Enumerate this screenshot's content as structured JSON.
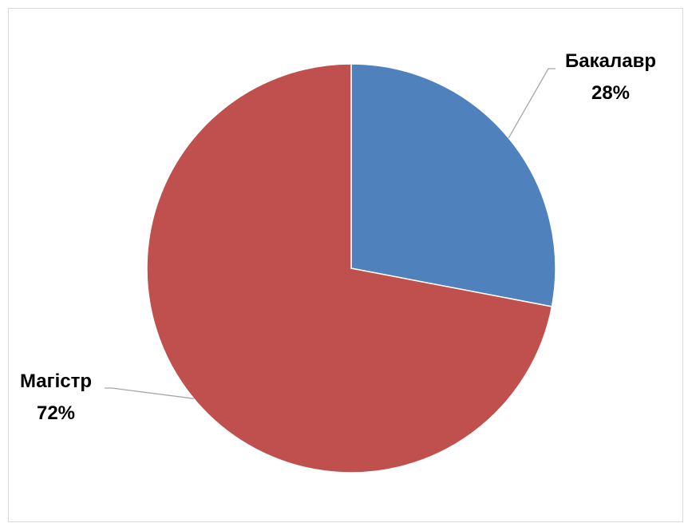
{
  "chart_data": {
    "type": "pie",
    "categories": [
      "Бакалавр",
      "Магістр"
    ],
    "values": [
      28,
      72
    ],
    "value_labels": [
      "28%",
      "72%"
    ],
    "colors": [
      "#4f81bd",
      "#c0504d"
    ],
    "title": "",
    "legend": "none",
    "start_angle_deg": 0,
    "direction": "clockwise"
  }
}
